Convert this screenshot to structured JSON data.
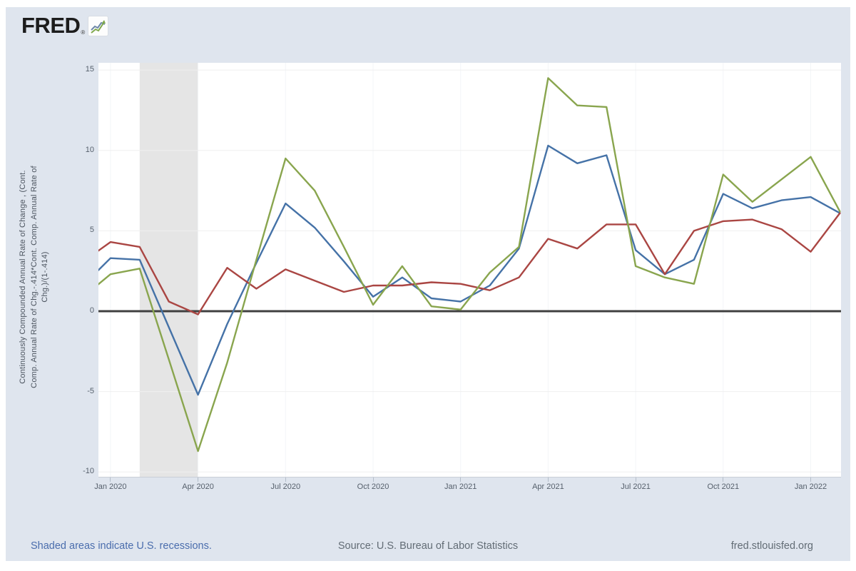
{
  "logo": {
    "text": "FRED",
    "registered": "®",
    "icon": "fred-sparkline-icon"
  },
  "y_axis": {
    "label_lines": [
      "Continuously Compounded Annual Rate of Change , (Cont.",
      "Comp. Annual Rate of Chg.-.414*Cont. Comp. Annual Rate of",
      "Chg.)/(1-.414)"
    ]
  },
  "footer": {
    "recession_note": "Shaded areas indicate U.S. recessions.",
    "source": "Source: U.S. Bureau of Labor Statistics",
    "site": "fred.stlouisfed.org"
  },
  "chart_data": {
    "type": "line",
    "title": "",
    "xlabel": "",
    "ylabel": "Continuously Compounded Annual Rate of Change , (Cont. Comp. Annual Rate of Chg.-.414*Cont. Comp. Annual Rate of Chg.)/(1-.414)",
    "x": [
      "Dec 2019",
      "Jan 2020",
      "Feb 2020",
      "Mar 2020",
      "Apr 2020",
      "May 2020",
      "Jun 2020",
      "Jul 2020",
      "Aug 2020",
      "Sep 2020",
      "Oct 2020",
      "Nov 2020",
      "Dec 2020",
      "Jan 2021",
      "Feb 2021",
      "Mar 2021",
      "Apr 2021",
      "May 2021",
      "Jun 2021",
      "Jul 2021",
      "Aug 2021",
      "Sep 2021",
      "Oct 2021",
      "Nov 2021",
      "Dec 2021",
      "Jan 2022",
      "Feb 2022"
    ],
    "series": [
      {
        "name": "blue-series",
        "color": "#4572a7",
        "values": [
          1.5,
          3.3,
          3.2,
          -1.0,
          -5.2,
          -0.8,
          3.0,
          6.7,
          5.2,
          3.1,
          0.9,
          2.1,
          0.8,
          0.6,
          1.6,
          3.9,
          10.3,
          9.2,
          9.7,
          3.8,
          2.3,
          3.2,
          7.3,
          6.4,
          6.9,
          7.1,
          6.1
        ]
      },
      {
        "name": "red-series",
        "color": "#aa4643",
        "values": [
          3.0,
          4.3,
          4.0,
          0.6,
          -0.2,
          2.7,
          1.4,
          2.6,
          1.9,
          1.2,
          1.6,
          1.6,
          1.8,
          1.7,
          1.3,
          2.1,
          4.5,
          3.9,
          5.4,
          5.4,
          2.3,
          5.0,
          5.6,
          5.7,
          5.1,
          3.7,
          6.1
        ]
      },
      {
        "name": "green-series",
        "color": "#89a54e",
        "values": [
          0.8,
          2.3,
          2.65,
          -3.0,
          -8.7,
          -3.2,
          3.2,
          9.5,
          7.5,
          4.0,
          0.4,
          2.8,
          0.3,
          0.1,
          2.4,
          4.0,
          14.5,
          12.8,
          12.7,
          2.8,
          2.1,
          1.7,
          8.5,
          6.8,
          8.2,
          9.6,
          6.2
        ]
      }
    ],
    "ylim": [
      -10.3,
      15.45
    ],
    "y_ticks": [
      15,
      10,
      5,
      0,
      -5,
      -10
    ],
    "x_tick_labels": [
      "Jan 2020",
      "Apr 2020",
      "Jul 2020",
      "Oct 2020",
      "Jan 2021",
      "Apr 2021",
      "Jul 2021",
      "Oct 2021",
      "Jan 2022"
    ],
    "x_tick_indices": [
      1,
      4,
      7,
      10,
      13,
      16,
      19,
      22,
      25
    ],
    "recession_band": {
      "from_index": 2,
      "to_index": 4
    },
    "zero_line": true,
    "grid": "horizontal-and-faint-vertical",
    "legend": "none",
    "colors": {
      "background": "#dfe5ee",
      "plot_background": "#ffffff",
      "recession_band": "#e5e5e5",
      "zero_line": "#404040",
      "gridline": "#efefef",
      "blue": "#4572a7",
      "red": "#aa4643",
      "green": "#89a54e"
    }
  }
}
